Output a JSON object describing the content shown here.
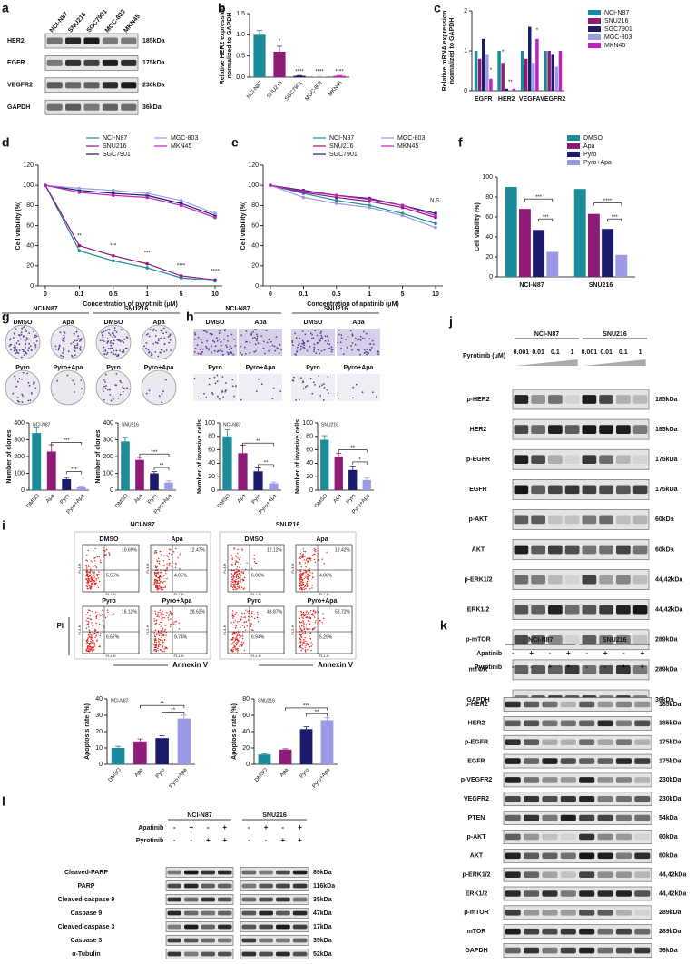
{
  "chart_data": [
    {
      "panel": "b",
      "type": "bar",
      "ylabel": [
        "Relative HER2 expression",
        "normalized to GAPDH"
      ],
      "categories": [
        "NCI-N87",
        "SNU216",
        "SGC7901",
        "MGC-803",
        "MKN45"
      ],
      "values": [
        1.0,
        0.6,
        0.03,
        0.01,
        0.03
      ],
      "errors": [
        0.1,
        0.13,
        0.01,
        0.005,
        0.01
      ],
      "colors": [
        "#1b8a99",
        "#8e1b78",
        "#1c1a6b",
        "#9a9ae6",
        "#c21fc1"
      ],
      "ylim": [
        0,
        1.5
      ],
      "yticks": [
        {
          "value": 0,
          "label": "0.0"
        },
        0.5,
        {
          "value": 1,
          "label": "1.0"
        },
        1.5
      ],
      "annotations": [
        {
          "text": "*",
          "x": 1,
          "y": 0.78
        },
        {
          "text": "****",
          "x": 2,
          "y": 0.07
        },
        {
          "text": "****",
          "x": 3,
          "y": 0.07
        },
        {
          "text": "****",
          "x": 4,
          "y": 0.07
        }
      ]
    },
    {
      "panel": "c",
      "type": "grouped_bar",
      "ylabel": [
        "Relative mRNA expression",
        "normalized to GAPDH"
      ],
      "categories": [
        "EGFR",
        "HER2",
        "VEGFA",
        "VEGFR2"
      ],
      "series": [
        {
          "name": "NCI-N87",
          "color": "#1b8a99",
          "values": [
            1.0,
            1.0,
            1.0,
            1.0
          ]
        },
        {
          "name": "SNU216",
          "color": "#8e1b78",
          "values": [
            0.8,
            0.7,
            0.8,
            1.0
          ]
        },
        {
          "name": "SGC7901",
          "color": "#1c1a6b",
          "values": [
            1.3,
            0.05,
            1.6,
            0.9
          ]
        },
        {
          "name": "MGC-803",
          "color": "#9a9ae6",
          "values": [
            0.9,
            0.02,
            0.7,
            0.6
          ]
        },
        {
          "name": "MKN45",
          "color": "#c21fc1",
          "values": [
            0.3,
            0.05,
            1.3,
            1.0
          ]
        }
      ],
      "ylim": [
        0,
        2
      ],
      "yticks": [
        0,
        1,
        2
      ],
      "annotations": [
        {
          "text": "*",
          "x": 0.32,
          "y": 0.45
        },
        {
          "text": "*",
          "x": 0.84,
          "y": 0.9
        },
        {
          "text": "**",
          "x": 1.16,
          "y": 0.15
        },
        {
          "text": "*",
          "x": 2.32,
          "y": 1.45
        }
      ]
    },
    {
      "panel": "d",
      "type": "line",
      "ylabel": "Cell viability (%)",
      "xlabel": "Concentration of pyrotinib (μM)",
      "categories": [
        "0",
        "0.1",
        "0.5",
        "1",
        "5",
        "10"
      ],
      "series": [
        {
          "name": "NCI-N87",
          "color": "#1b8a99",
          "values": [
            100,
            35,
            25,
            18,
            8,
            5
          ]
        },
        {
          "name": "SNU216",
          "color": "#8e1b78",
          "values": [
            100,
            40,
            30,
            22,
            10,
            6
          ]
        },
        {
          "name": "SGC7901",
          "color": "#1c1a6b",
          "values": [
            100,
            95,
            92,
            90,
            82,
            70
          ]
        },
        {
          "name": "MGC-803",
          "color": "#9a9ae6",
          "values": [
            100,
            97,
            95,
            92,
            85,
            72
          ]
        },
        {
          "name": "MKN45",
          "color": "#c21fc1",
          "values": [
            100,
            93,
            90,
            88,
            80,
            68
          ]
        }
      ],
      "ylim": [
        0,
        120
      ],
      "yticks": [
        0,
        20,
        40,
        60,
        80,
        100,
        120
      ],
      "annotations": [
        {
          "text": "**",
          "x": 1,
          "y": 47
        },
        {
          "text": "***",
          "x": 2,
          "y": 37
        },
        {
          "text": "***",
          "x": 3,
          "y": 30
        },
        {
          "text": "****",
          "x": 4,
          "y": 17
        },
        {
          "text": "****",
          "x": 5,
          "y": 12
        }
      ]
    },
    {
      "panel": "e",
      "type": "line",
      "ylabel": "Cell viability (%)",
      "xlabel": "Concentration of apatinib (μM)",
      "categories": [
        "0",
        "0.1",
        "0.5",
        "1",
        "5",
        "10"
      ],
      "series": [
        {
          "name": "NCI-N87",
          "color": "#1b8a99",
          "values": [
            100,
            92,
            85,
            80,
            72,
            62
          ]
        },
        {
          "name": "SNU216",
          "color": "#8e1b78",
          "values": [
            100,
            93,
            88,
            84,
            78,
            68
          ]
        },
        {
          "name": "SGC7901",
          "color": "#1c1a6b",
          "values": [
            100,
            95,
            90,
            87,
            80,
            72
          ]
        },
        {
          "name": "MGC-803",
          "color": "#9a9ae6",
          "values": [
            100,
            88,
            82,
            78,
            70,
            58
          ]
        },
        {
          "name": "MKN45",
          "color": "#c21fc1",
          "values": [
            100,
            94,
            90,
            86,
            80,
            70
          ]
        }
      ],
      "ylim": [
        0,
        120
      ],
      "yticks": [
        0,
        20,
        40,
        60,
        80,
        100,
        120
      ],
      "annotations": [
        {
          "text": "N.S.",
          "x": 5,
          "y": 82
        }
      ]
    },
    {
      "panel": "f",
      "type": "grouped_bar",
      "ylabel": "Cell viability (%)",
      "categories": [
        "NCI-N87",
        "SNU216"
      ],
      "series": [
        {
          "name": "DMSO",
          "color": "#1b8a99",
          "values": [
            90,
            88
          ]
        },
        {
          "name": "Apa",
          "color": "#8e1b78",
          "values": [
            68,
            63
          ]
        },
        {
          "name": "Pyro",
          "color": "#1c1a6b",
          "values": [
            47,
            48
          ]
        },
        {
          "name": "Pyro+Apa",
          "color": "#9a9ae6",
          "values": [
            25,
            22
          ]
        }
      ],
      "ylim": [
        0,
        100
      ],
      "yticks": [
        0,
        20,
        40,
        60,
        80,
        100
      ],
      "annotations": [
        {
          "text": "***",
          "x": [
            -0.1,
            0.3
          ],
          "y": 78
        },
        {
          "text": "***",
          "x": [
            0.1,
            0.3
          ],
          "y": 58
        },
        {
          "text": "****",
          "x": [
            0.9,
            1.3
          ],
          "y": 74
        },
        {
          "text": "***",
          "x": [
            1.1,
            1.3
          ],
          "y": 58
        }
      ]
    },
    {
      "type": "bar",
      "title": "NCI-N87",
      "ylabel": "Number of clones",
      "categories": [
        "DMSO",
        "Apa",
        "Pyro",
        "Pyro+Apa"
      ],
      "values": [
        340,
        230,
        65,
        20
      ],
      "errors": [
        35,
        40,
        10,
        5
      ],
      "colors": [
        "#1b8a99",
        "#8e1b78",
        "#1c1a6b",
        "#9a9ae6"
      ],
      "ylim": [
        0,
        400
      ],
      "yticks": [
        0,
        100,
        200,
        300,
        400
      ],
      "annotations": [
        {
          "text": "***",
          "x": [
            1,
            3
          ],
          "y": 285
        },
        {
          "text": "***",
          "x": [
            2,
            3
          ],
          "y": 110
        }
      ]
    },
    {
      "type": "bar",
      "title": "SNU216",
      "ylabel": "Number of clones",
      "categories": [
        "DMSO",
        "Apa",
        "Pyro",
        "Pyro+Apa"
      ],
      "values": [
        290,
        180,
        100,
        45
      ],
      "errors": [
        25,
        15,
        10,
        10
      ],
      "colors": [
        "#1b8a99",
        "#8e1b78",
        "#1c1a6b",
        "#9a9ae6"
      ],
      "ylim": [
        0,
        400
      ],
      "yticks": [
        0,
        100,
        200,
        300,
        400
      ],
      "annotations": [
        {
          "text": "***",
          "x": [
            1,
            3
          ],
          "y": 215
        },
        {
          "text": "**",
          "x": [
            2,
            3
          ],
          "y": 135
        }
      ]
    },
    {
      "type": "bar",
      "title": "NCI-N87",
      "ylabel": "Number of invasive cells",
      "categories": [
        "DMSO",
        "Apa",
        "Pyro",
        "Pyro+Apa"
      ],
      "values": [
        80,
        55,
        28,
        10
      ],
      "errors": [
        10,
        12,
        5,
        2
      ],
      "colors": [
        "#1b8a99",
        "#8e1b78",
        "#1c1a6b",
        "#9a9ae6"
      ],
      "ylim": [
        0,
        100
      ],
      "yticks": [
        0,
        20,
        40,
        60,
        80,
        100
      ],
      "annotations": [
        {
          "text": "**",
          "x": [
            1,
            3
          ],
          "y": 70
        },
        {
          "text": "**",
          "x": [
            2,
            3
          ],
          "y": 38
        }
      ]
    },
    {
      "type": "bar",
      "title": "SNU216",
      "ylabel": "Number of invasive cells",
      "categories": [
        "DMSO",
        "Apa",
        "Pyro",
        "Pyro+Apa"
      ],
      "values": [
        75,
        50,
        30,
        15
      ],
      "errors": [
        6,
        5,
        6,
        3
      ],
      "colors": [
        "#1b8a99",
        "#8e1b78",
        "#1c1a6b",
        "#9a9ae6"
      ],
      "ylim": [
        0,
        100
      ],
      "yticks": [
        0,
        20,
        40,
        60,
        80,
        100
      ],
      "annotations": [
        {
          "text": "**",
          "x": [
            1,
            3
          ],
          "y": 60
        },
        {
          "text": "*",
          "x": [
            2,
            3
          ],
          "y": 42
        }
      ]
    },
    {
      "type": "bar",
      "title": "NCI-N87",
      "ylabel": "Apoptosis rate (%)",
      "categories": [
        "DMSO",
        "Apa",
        "Pyro",
        "Pyro+Apa"
      ],
      "values": [
        10,
        14,
        16,
        28
      ],
      "errors": [
        1,
        1.5,
        1.5,
        2
      ],
      "colors": [
        "#1b8a99",
        "#8e1b78",
        "#1c1a6b",
        "#9a9ae6"
      ],
      "ylim": [
        0,
        40
      ],
      "yticks": [
        0,
        10,
        20,
        30,
        40
      ],
      "annotations": [
        {
          "text": "**",
          "x": [
            1,
            3
          ],
          "y": 36
        },
        {
          "text": "**",
          "x": [
            2,
            3
          ],
          "y": 32
        }
      ]
    },
    {
      "type": "bar",
      "title": "SNU216",
      "ylabel": "Apoptosis rate (%)",
      "categories": [
        "DMSO",
        "Apa",
        "Pyro",
        "Pyro+Apa"
      ],
      "values": [
        12,
        18,
        43,
        54
      ],
      "errors": [
        1,
        1,
        3,
        3
      ],
      "colors": [
        "#1b8a99",
        "#8e1b78",
        "#1c1a6b",
        "#9a9ae6"
      ],
      "ylim": [
        0,
        80
      ],
      "yticks": [
        0,
        20,
        40,
        60,
        80
      ],
      "annotations": [
        {
          "text": "***",
          "x": [
            1,
            3
          ],
          "y": 69
        },
        {
          "text": "**",
          "x": [
            2,
            3
          ],
          "y": 62
        }
      ]
    }
  ],
  "blots": [
    {
      "panel": "a",
      "lanes": [
        "NCI-N87",
        "SNU216",
        "SGC7901",
        "MGC-803",
        "MKN45"
      ],
      "rows": [
        {
          "name": "HER2",
          "kda": "185kDa"
        },
        {
          "name": "EGFR",
          "kda": "175kDa"
        },
        {
          "name": "VEGFR2",
          "kda": "230kDa"
        },
        {
          "name": "GAPDH",
          "kda": "36kDa"
        }
      ]
    },
    {
      "panel": "j",
      "treatment": "Pyrotinib (μM)",
      "groups": [
        {
          "name": "NCI-N87",
          "doses": [
            "0.001",
            "0.01",
            "0.1",
            "1"
          ]
        },
        {
          "name": "SNU216",
          "doses": [
            "0.001",
            "0.01",
            "0.1",
            "1"
          ]
        }
      ],
      "rows": [
        {
          "name": "p-HER2",
          "kda": "185kDa"
        },
        {
          "name": "HER2",
          "kda": "185kDa"
        },
        {
          "name": "p-EGFR",
          "kda": "175kDa"
        },
        {
          "name": "EGFR",
          "kda": "175kDa"
        },
        {
          "name": "p-AKT",
          "kda": "60kDa"
        },
        {
          "name": "AKT",
          "kda": "60kDa"
        },
        {
          "name": "p-ERK1/2",
          "kda": "44,42kDa"
        },
        {
          "name": "ERK1/2",
          "kda": "44,42kDa"
        },
        {
          "name": "p-mTOR",
          "kda": "289kDa"
        },
        {
          "name": "mTOR",
          "kda": "289kDa"
        },
        {
          "name": "GAPDH",
          "kda": "36kDa"
        }
      ]
    },
    {
      "panel": "k",
      "groups": [
        "NCI-N87",
        "SNU216"
      ],
      "treatments": [
        {
          "name": "Apatinib",
          "signs": [
            "-",
            "+",
            "-",
            "+"
          ]
        },
        {
          "name": "Pyrotinib",
          "signs": [
            "-",
            "-",
            "+",
            "+"
          ]
        }
      ],
      "rows": [
        {
          "name": "p-HER2",
          "kda": "185kDa"
        },
        {
          "name": "HER2",
          "kda": "185kDa"
        },
        {
          "name": "p-EGFR",
          "kda": "175kDa"
        },
        {
          "name": "EGFR",
          "kda": "175kDa"
        },
        {
          "name": "p-VEGFR2",
          "kda": "230kDa"
        },
        {
          "name": "VEGFR2",
          "kda": "230kDa"
        },
        {
          "name": "PTEN",
          "kda": "54kDa"
        },
        {
          "name": "p-AKT",
          "kda": "60kDa"
        },
        {
          "name": "AKT",
          "kda": "60kDa"
        },
        {
          "name": "p-ERK1/2",
          "kda": "44,42kDa"
        },
        {
          "name": "ERK1/2",
          "kda": "44,42kDa"
        },
        {
          "name": "p-mTOR",
          "kda": "289kDa"
        },
        {
          "name": "mTOR",
          "kda": "289kDa"
        },
        {
          "name": "GAPDH",
          "kda": "36kDa"
        }
      ]
    },
    {
      "panel": "l",
      "groups": [
        "NCI-N87",
        "SNU216"
      ],
      "treatments": [
        {
          "name": "Apatinib",
          "signs": [
            "-",
            "+",
            "-",
            "+"
          ]
        },
        {
          "name": "Pyrotinib",
          "signs": [
            "-",
            "-",
            "+",
            "+"
          ]
        }
      ],
      "rows": [
        {
          "name": "Cleaved-PARP",
          "kda": "89kDa"
        },
        {
          "name": "PARP",
          "kda": "116kDa"
        },
        {
          "name": "Cleaved-caspase 9",
          "kda": "35kDa"
        },
        {
          "name": "Caspase 9",
          "kda": "47kDa"
        },
        {
          "name": "Cleaved-caspase 3",
          "kda": "17kDa"
        },
        {
          "name": "Caspase 3",
          "kda": "35kDa"
        },
        {
          "name": "α-Tubulin",
          "kda": "52kDa"
        }
      ]
    }
  ],
  "images": [
    {
      "panel": "g",
      "groups": [
        "NCI-N87",
        "SNU216"
      ],
      "conditions": [
        "DMSO",
        "Apa",
        "Pyro",
        "Pyro+Apa"
      ]
    },
    {
      "panel": "h",
      "groups": [
        "NCI-N87",
        "SNU216"
      ],
      "conditions": [
        "DMSO",
        "Apa",
        "Pyro",
        "Pyro+Apa"
      ]
    }
  ],
  "flow": {
    "panel": "i",
    "axis_x": "Annexin V",
    "axis_y": "PI",
    "channel_x": "FL1-H",
    "channel_y": "FL3-H",
    "groups": [
      {
        "name": "NCI-N87",
        "plots": [
          {
            "condition": "DMSO",
            "upper": "10.69%",
            "lower": "5.55%"
          },
          {
            "condition": "Apa",
            "upper": "12.47%",
            "lower": "4.05%"
          },
          {
            "condition": "Pyro",
            "upper": "16.12%",
            "lower": "6.67%"
          },
          {
            "condition": "Pyro+Apa",
            "upper": "28.62%",
            "lower": "9.74%"
          }
        ]
      },
      {
        "name": "SNU216",
        "plots": [
          {
            "condition": "DMSO",
            "upper": "12.12%",
            "lower": "6.06%"
          },
          {
            "condition": "Apa",
            "upper": "18.42%",
            "lower": "4.06%"
          },
          {
            "condition": "Pyro",
            "upper": "43.87%",
            "lower": "6.94%"
          },
          {
            "condition": "Pyro+Apa",
            "upper": "53.72%",
            "lower": "5.29%"
          }
        ]
      }
    ]
  }
}
